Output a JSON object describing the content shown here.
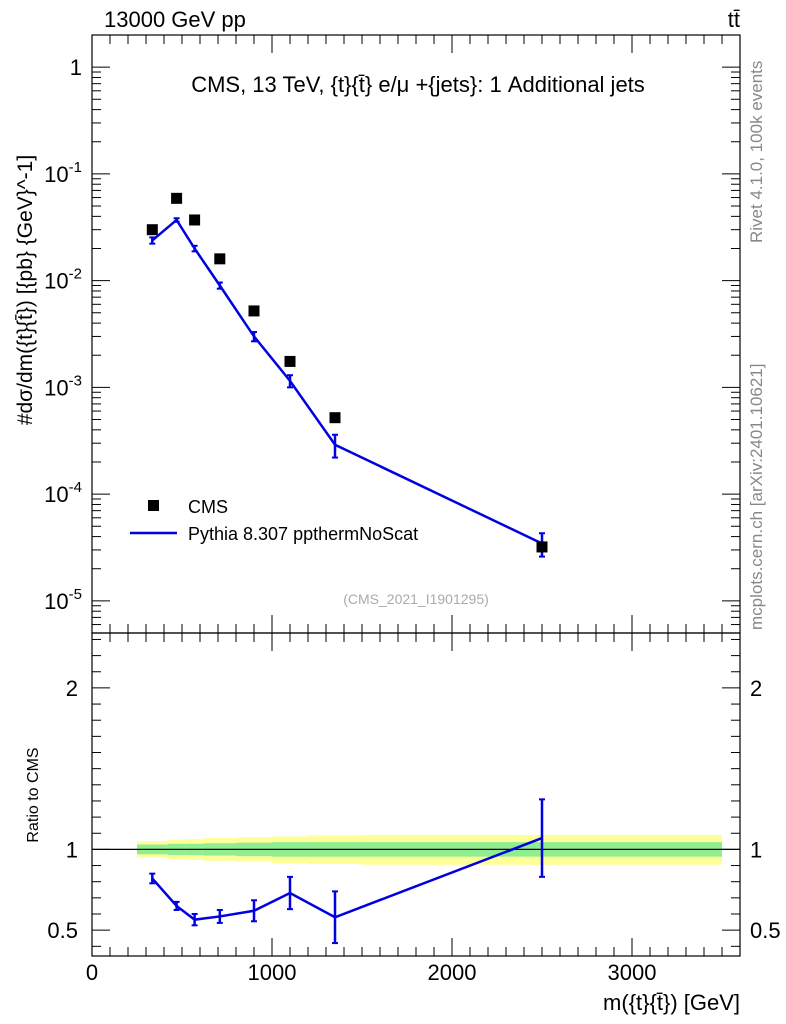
{
  "header": {
    "beam_label": "13000 GeV pp",
    "process_symbol": "tt̄"
  },
  "side_labels": {
    "rivet": "Rivet 4.1.0,  100k events",
    "mcplots": "mcplots.cern.ch [arXiv:2401.10621]"
  },
  "chart_data": [
    {
      "type": "scatter",
      "panel": "main",
      "title": "CMS, 13 TeV, {t}{t̄} e/μ +{jets}: 1 Additional jets",
      "analysis_id": "(CMS_2021_I1901295)",
      "ylabel": "#dσ/dm({t}{t̄}) [{pb} {GeV}^-1]",
      "yscale": "log",
      "ylim": [
        5e-06,
        2.0
      ],
      "xlim": [
        0,
        3600
      ],
      "y_tick_labels": [
        "1",
        "10^-1",
        "10^-2",
        "10^-3",
        "10^-4",
        "10^-5"
      ],
      "y_tick_values": [
        1,
        0.1,
        0.01,
        0.001,
        0.0001,
        1e-05
      ],
      "legend": {
        "position": "bottom-left",
        "entries": [
          "CMS",
          "Pythia 8.307 ppthermNoScat"
        ]
      },
      "series": [
        {
          "name": "CMS",
          "style": "markers",
          "color": "#000000",
          "x": [
            335,
            470,
            570,
            710,
            900,
            1100,
            1350,
            2500
          ],
          "y": [
            0.03,
            0.059,
            0.037,
            0.016,
            0.0052,
            0.00175,
            0.00052,
            3.2e-05
          ]
        },
        {
          "name": "Pythia 8.307 ppthermNoScat",
          "style": "line",
          "color": "#0000e0",
          "x": [
            335,
            470,
            570,
            710,
            900,
            1100,
            1350,
            2500
          ],
          "y": [
            0.0238,
            0.037,
            0.02,
            0.009,
            0.003,
            0.00115,
            0.00029,
            3.45e-05
          ],
          "yerr": [
            0.0016,
            0.0014,
            0.0012,
            0.0006,
            0.0003,
            0.00015,
            7e-05,
            8.5e-06
          ]
        }
      ]
    },
    {
      "type": "line",
      "panel": "ratio",
      "ylabel": "Ratio to CMS",
      "xlabel": "m({t}{t̄}) [GeV]",
      "ylim": [
        0.34,
        2.34
      ],
      "xlim": [
        0,
        3600
      ],
      "x_tick_labels": [
        "0",
        "1000",
        "2000",
        "3000"
      ],
      "x_tick_values": [
        0,
        1000,
        2000,
        3000
      ],
      "y_tick_labels": [
        "2",
        "1",
        "0.5"
      ],
      "y_tick_values": [
        2,
        1,
        0.5
      ],
      "uncertainty_bands": {
        "bin_edges": [
          250,
          420,
          520,
          620,
          800,
          1000,
          1200,
          1500,
          3500
        ],
        "stat_lower": [
          0.97,
          0.965,
          0.965,
          0.962,
          0.958,
          0.955,
          0.955,
          0.955
        ],
        "stat_upper": [
          1.03,
          1.035,
          1.035,
          1.038,
          1.042,
          1.045,
          1.045,
          1.045
        ],
        "total_lower": [
          0.95,
          0.94,
          0.935,
          0.93,
          0.925,
          0.915,
          0.91,
          0.905
        ],
        "total_upper": [
          1.05,
          1.06,
          1.065,
          1.07,
          1.075,
          1.08,
          1.085,
          1.09
        ],
        "stat_color": "#90ee90",
        "total_color": "#ffff99"
      },
      "series": [
        {
          "name": "Pythia 8.307 ppthermNoScat",
          "color": "#0000e0",
          "x": [
            335,
            470,
            570,
            710,
            900,
            1100,
            1350,
            2500
          ],
          "y": [
            0.82,
            0.65,
            0.565,
            0.585,
            0.62,
            0.73,
            0.58,
            1.07
          ],
          "yerr": [
            0.03,
            0.025,
            0.035,
            0.04,
            0.065,
            0.1,
            0.16,
            0.24
          ]
        }
      ]
    }
  ]
}
